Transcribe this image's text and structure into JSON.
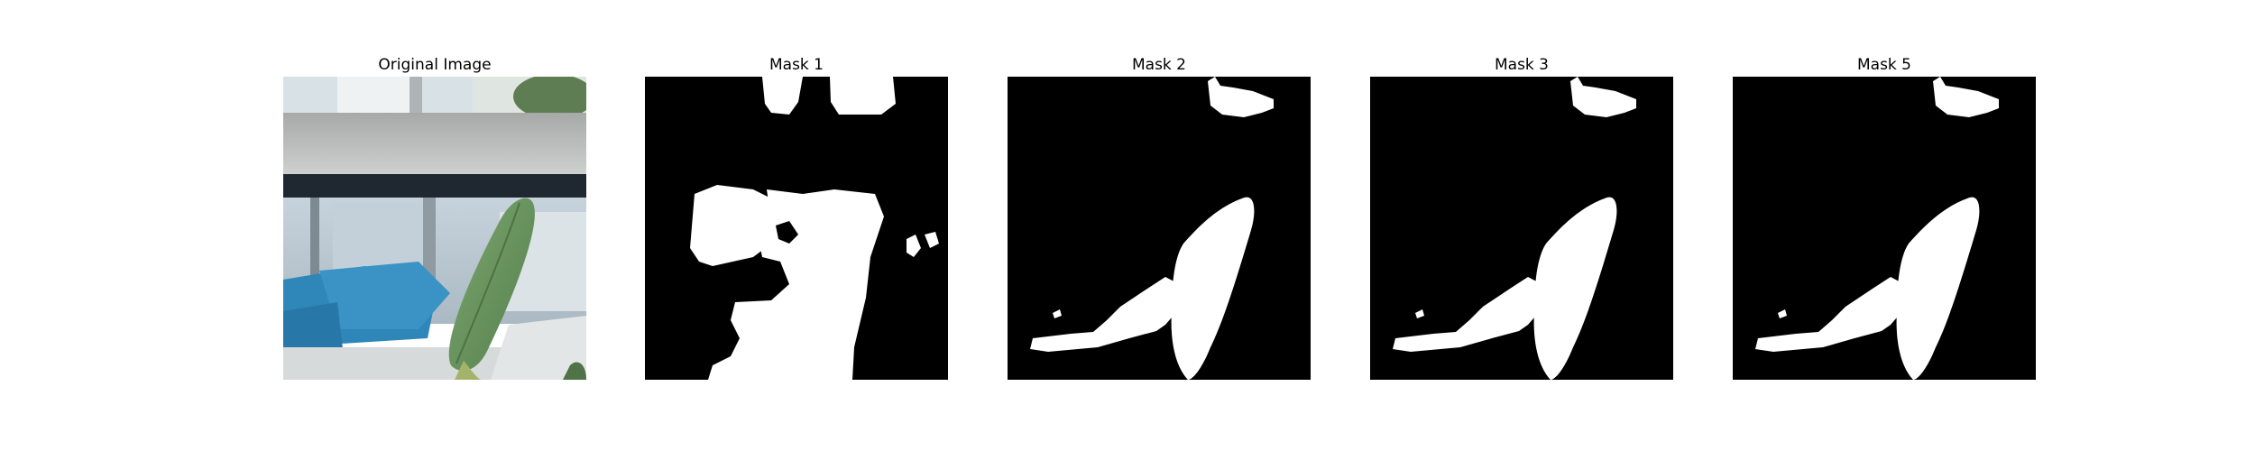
{
  "panels": [
    {
      "title": "Original Image",
      "kind": "photo"
    },
    {
      "title": "Mask 1",
      "kind": "mask",
      "mask_color": "#000000",
      "region_color": "#ffffff"
    },
    {
      "title": "Mask 2",
      "kind": "mask",
      "mask_color": "#000000",
      "region_color": "#ffffff"
    },
    {
      "title": "Mask 3",
      "kind": "mask",
      "mask_color": "#000000",
      "region_color": "#ffffff"
    },
    {
      "title": "Mask 5",
      "kind": "mask",
      "mask_color": "#000000",
      "region_color": "#ffffff"
    }
  ],
  "colors": {
    "background": "#ffffff",
    "mask": "#000000",
    "mask_region": "#ffffff",
    "leaf": "#6f9663",
    "blue_object": "#2f86b8",
    "window_frame": "#1f2730"
  }
}
